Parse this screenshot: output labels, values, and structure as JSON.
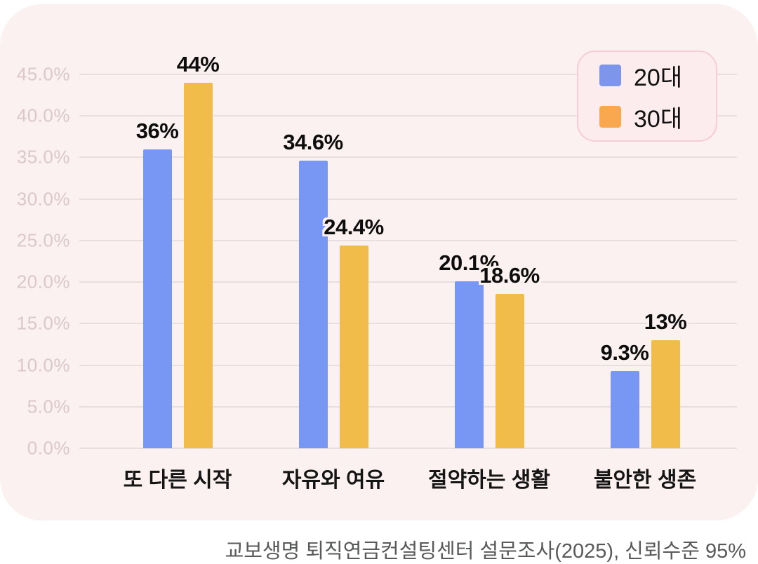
{
  "chart_data": {
    "type": "bar",
    "title": "",
    "categories": [
      "또 다른 시작",
      "자유와 여유",
      "절약하는 생활",
      "불안한 생존"
    ],
    "series": [
      {
        "name": "20대",
        "color": "#7897f5",
        "values": [
          36,
          34.6,
          20.1,
          9.3
        ],
        "labels": [
          "36%",
          "34.6%",
          "20.1%",
          "9.3%"
        ]
      },
      {
        "name": "30대",
        "color": "#f2bc4b",
        "values": [
          44,
          24.4,
          18.6,
          13
        ],
        "labels": [
          "44%",
          "24.4%",
          "18.6%",
          "13%"
        ]
      }
    ],
    "y_axis": {
      "min": 0,
      "max": 45,
      "step": 5,
      "ticks": [
        "45.0%",
        "40.0%",
        "35.0%",
        "30.0%",
        "25.0%",
        "20.0%",
        "15.0%",
        "10.0%",
        "5.0%",
        "0.0%"
      ],
      "grid": true
    },
    "legend": {
      "position": "top-right",
      "entries": [
        {
          "label": "20대",
          "color": "#7d95ea"
        },
        {
          "label": "30대",
          "color": "#faa84f"
        }
      ]
    },
    "source_note": "교보생명 퇴직연금컨설팅센터 설문조사(2025), 신뢰수준 95%"
  },
  "colors": {
    "card_background": "#faf1f0",
    "page_background": "#ffffff",
    "gridline": "#e7dfdf",
    "y_tick_text": "#dcc7ca",
    "value_label_text": "#0d0d0d",
    "legend_background": "#fcecee",
    "legend_border": "#f7ccd6",
    "source_note_text": "#58595b"
  }
}
